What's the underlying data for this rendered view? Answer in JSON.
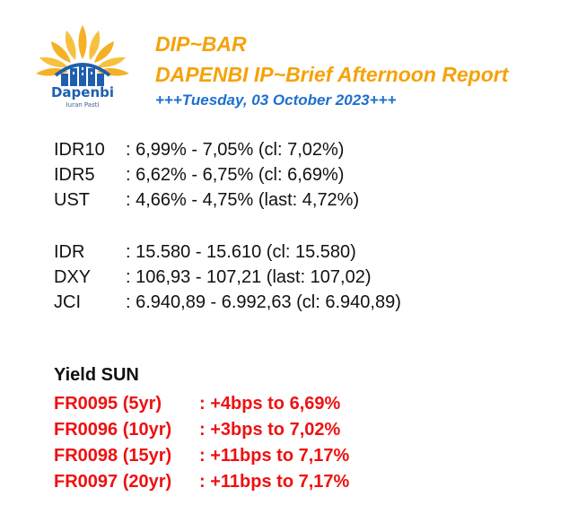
{
  "logo": {
    "brand": "Dapenbi",
    "tagline": "Iuran Pasti",
    "colors": {
      "petals": "#f5b025",
      "buildings": "#1f5fae"
    },
    "icon": "sun-buildings-logo-icon"
  },
  "header": {
    "title": "DIP~BAR",
    "subtitle": "DAPENBI IP~Brief Afternoon Report",
    "date": "+++Tuesday, 03 October 2023+++",
    "colors": {
      "title": "#f5a20a",
      "date": "#1e6fd0"
    }
  },
  "rates": [
    {
      "label": "IDR10",
      "value": ": 6,99% - 7,05% (cl: 7,02%)"
    },
    {
      "label": "IDR5",
      "value": ": 6,62% - 6,75% (cl: 6,69%)"
    },
    {
      "label": "UST",
      "value": ": 4,66% - 4,75% (last: 4,72%)"
    }
  ],
  "markets": [
    {
      "label": "IDR",
      "value": ": 15.580 - 15.610 (cl: 15.580)"
    },
    {
      "label": "DXY",
      "value": ": 106,93 - 107,21 (last: 107,02)"
    },
    {
      "label": "JCI",
      "value": ": 6.940,89 - 6.992,63 (cl: 6.940,89)"
    }
  ],
  "yield": {
    "title": "Yield SUN",
    "color": "#ee1111",
    "items": [
      {
        "code": "FR0095 (5yr)",
        "change": ": +4bps to 6,69%"
      },
      {
        "code": "FR0096 (10yr)",
        "change": ": +3bps to 7,02%"
      },
      {
        "code": "FR0098 (15yr)",
        "change": ": +11bps to 7,17%"
      },
      {
        "code": "FR0097 (20yr)",
        "change": ": +11bps to 7,17%"
      }
    ]
  }
}
